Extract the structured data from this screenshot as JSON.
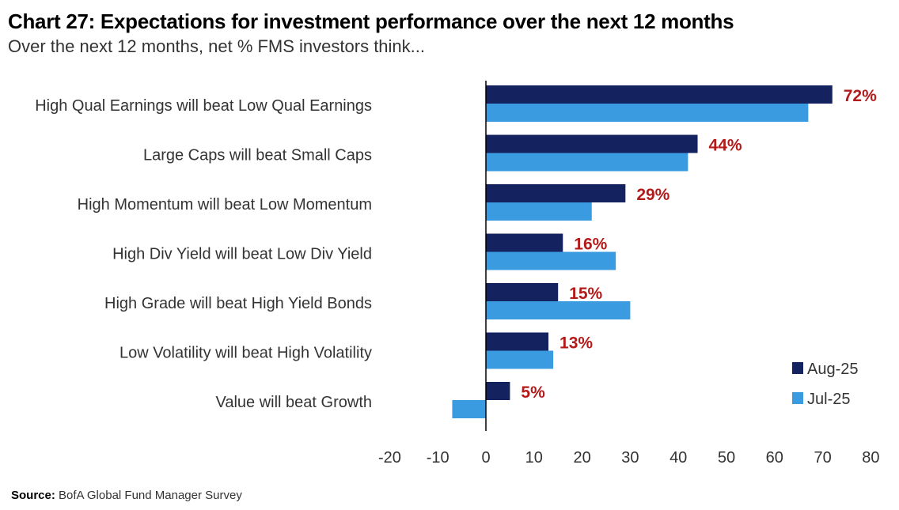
{
  "title": "Chart 27: Expectations for investment performance over the next 12 months",
  "subtitle": "Over the next 12 months, net % FMS investors think...",
  "source": {
    "label": "Source:",
    "text": "BofA Global Fund Manager Survey"
  },
  "colors": {
    "aug": "#14225f",
    "jul": "#3b9be0",
    "label": "#b31b1b",
    "axis": "#000000"
  },
  "chart_data": {
    "type": "bar",
    "orientation": "horizontal",
    "categories": [
      "High Qual Earnings will beat Low Qual Earnings",
      "Large Caps will beat Small Caps",
      "High Momentum will beat Low Momentum",
      "High Div Yield will beat Low Div Yield",
      "High Grade will beat High Yield Bonds",
      "Low Volatility will beat High Volatility",
      "Value will beat Growth"
    ],
    "series": [
      {
        "name": "Aug-25",
        "values": [
          72,
          44,
          29,
          16,
          15,
          13,
          5
        ],
        "labels": [
          "72%",
          "44%",
          "29%",
          "16%",
          "15%",
          "13%",
          "5%"
        ]
      },
      {
        "name": "Jul-25",
        "values": [
          67,
          42,
          22,
          27,
          30,
          14,
          -7
        ]
      }
    ],
    "xlim": [
      -20,
      80
    ],
    "xticks": [
      -20,
      -10,
      0,
      10,
      20,
      30,
      40,
      50,
      60,
      70,
      80
    ],
    "grid": false,
    "legend": "bottom-right"
  }
}
